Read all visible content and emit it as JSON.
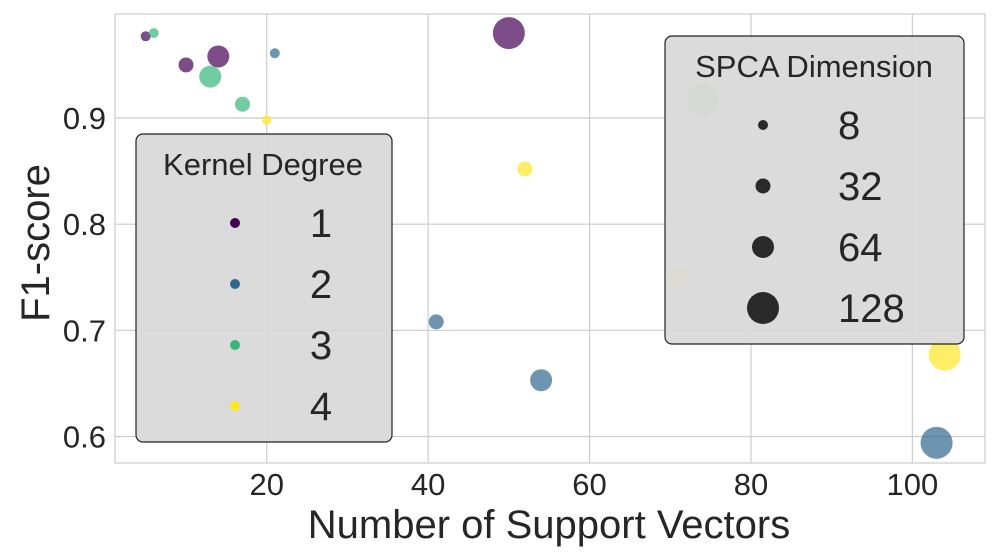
{
  "chart_data": {
    "type": "scatter",
    "title": "",
    "xlabel": "Number of Support Vectors",
    "ylabel": "F1-score",
    "xlim": [
      1.2,
      109
    ],
    "ylim": [
      0.575,
      0.998
    ],
    "xticks": [
      20,
      40,
      60,
      80,
      100
    ],
    "yticks": [
      0.6,
      0.7,
      0.8,
      0.9
    ],
    "xtick_labels": [
      "20",
      "40",
      "60",
      "80",
      "100"
    ],
    "ytick_labels": [
      "0.6",
      "0.7",
      "0.8",
      "0.9"
    ],
    "grid": true,
    "colors": {
      "1": "#440154",
      "2": "#31688e",
      "3": "#35b779",
      "4": "#fde725"
    },
    "points": [
      {
        "x": 5,
        "y": 0.977,
        "degree": 1,
        "dim": 8
      },
      {
        "x": 6,
        "y": 0.98,
        "degree": 3,
        "dim": 8
      },
      {
        "x": 10,
        "y": 0.95,
        "degree": 1,
        "dim": 32
      },
      {
        "x": 13,
        "y": 0.939,
        "degree": 3,
        "dim": 64
      },
      {
        "x": 14,
        "y": 0.958,
        "degree": 1,
        "dim": 64
      },
      {
        "x": 17,
        "y": 0.913,
        "degree": 3,
        "dim": 32
      },
      {
        "x": 20,
        "y": 0.898,
        "degree": 4,
        "dim": 8
      },
      {
        "x": 21,
        "y": 0.961,
        "degree": 2,
        "dim": 8
      },
      {
        "x": 41,
        "y": 0.708,
        "degree": 2,
        "dim": 32
      },
      {
        "x": 50,
        "y": 0.98,
        "degree": 1,
        "dim": 128
      },
      {
        "x": 52,
        "y": 0.852,
        "degree": 4,
        "dim": 32
      },
      {
        "x": 54,
        "y": 0.653,
        "degree": 2,
        "dim": 64
      },
      {
        "x": 71,
        "y": 0.75,
        "degree": 4,
        "dim": 64
      },
      {
        "x": 74,
        "y": 0.917,
        "degree": 3,
        "dim": 128
      },
      {
        "x": 103,
        "y": 0.594,
        "degree": 2,
        "dim": 128
      },
      {
        "x": 104,
        "y": 0.677,
        "degree": 4,
        "dim": 128
      }
    ],
    "legend_degree": {
      "title": "Kernel Degree",
      "location": "left",
      "entries": [
        {
          "label": "1",
          "degree": 1
        },
        {
          "label": "2",
          "degree": 2
        },
        {
          "label": "3",
          "degree": 3
        },
        {
          "label": "4",
          "degree": 4
        }
      ]
    },
    "legend_dimension": {
      "title": "SPCA Dimension",
      "location": "top-right",
      "entries": [
        {
          "label": "8",
          "dim": 8
        },
        {
          "label": "32",
          "dim": 32
        },
        {
          "label": "64",
          "dim": 64
        },
        {
          "label": "128",
          "dim": 128
        }
      ]
    }
  }
}
